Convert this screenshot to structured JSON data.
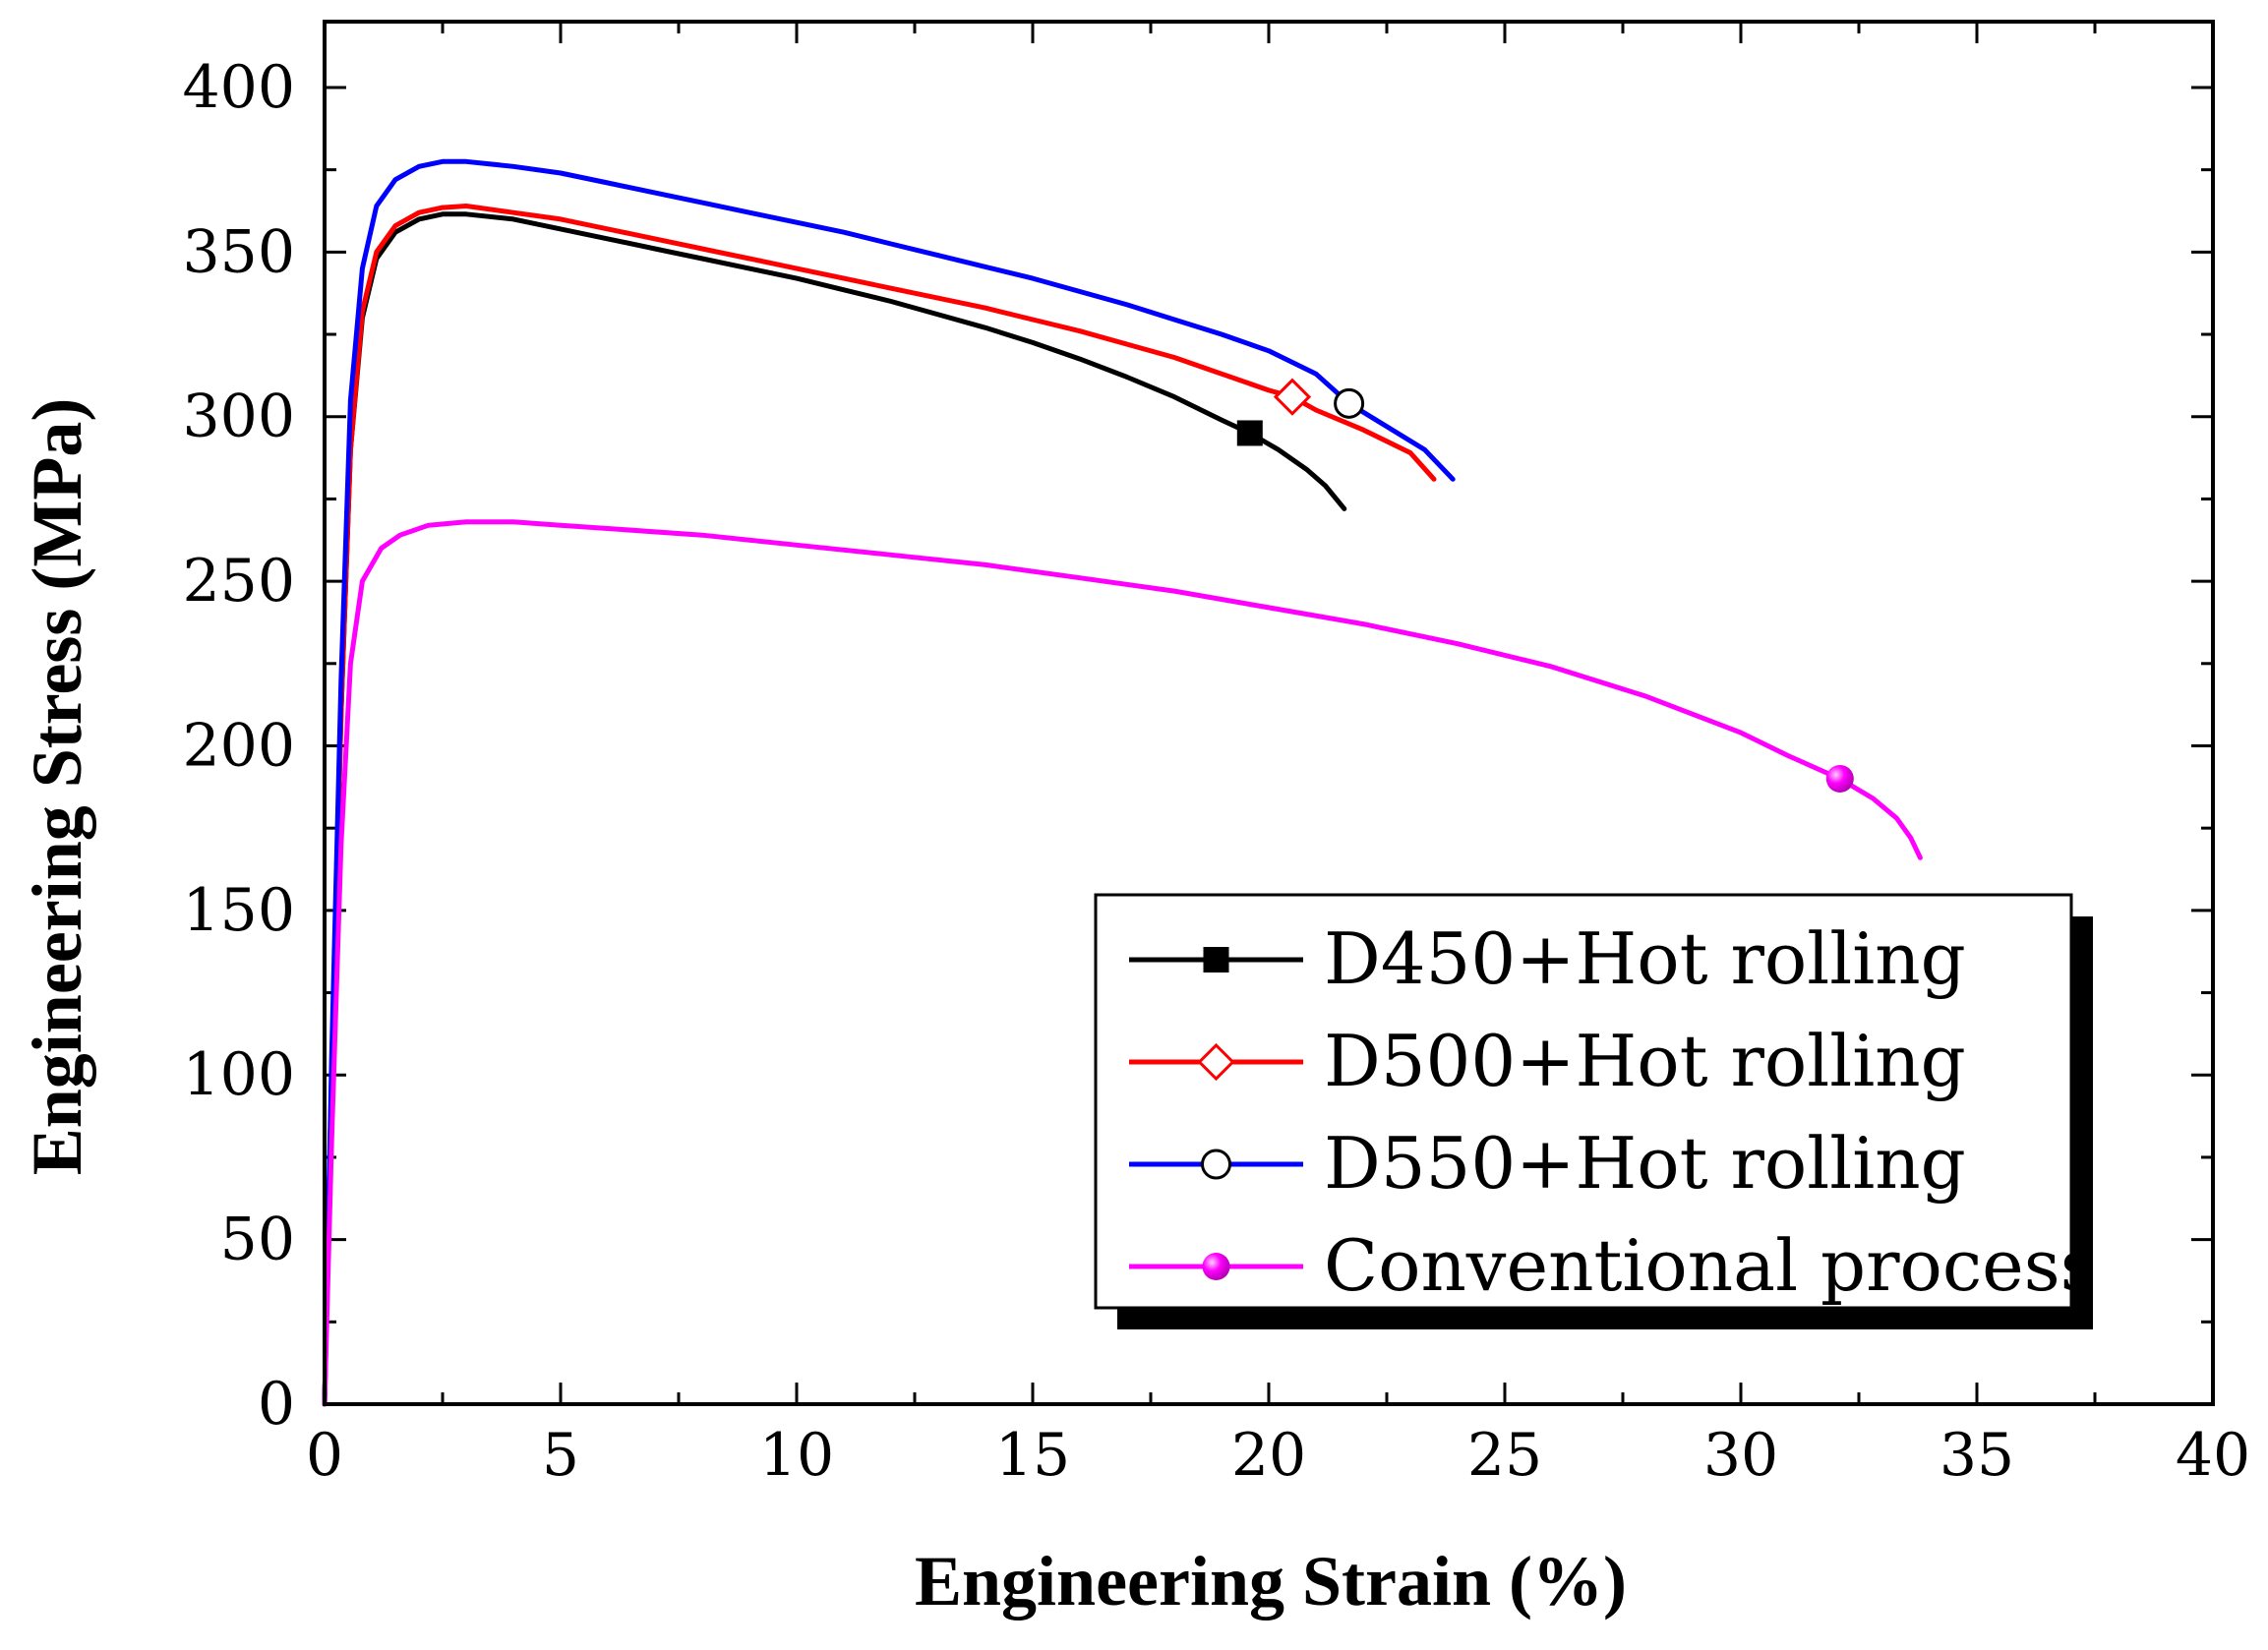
{
  "chart_data": {
    "type": "line",
    "xlabel": "Engineering Strain (%)",
    "ylabel": "Engineering Stress (MPa)",
    "xlim": [
      0,
      40
    ],
    "ylim": [
      0,
      420
    ],
    "x_ticks": [
      0,
      5,
      10,
      15,
      20,
      25,
      30,
      35,
      40
    ],
    "y_ticks": [
      0,
      50,
      100,
      150,
      200,
      250,
      300,
      350,
      400
    ],
    "legend_position": "bottom-right",
    "series": [
      {
        "name": "D450+Hot rolling",
        "color": "#000000",
        "marker": "filled-square",
        "marker_at": [
          19.6,
          295
        ],
        "x": [
          0,
          0.15,
          0.35,
          0.55,
          0.8,
          1.1,
          1.5,
          2.0,
          2.5,
          3.0,
          4,
          5,
          6,
          7,
          8,
          9,
          10,
          11,
          12,
          13,
          14,
          15,
          16,
          17,
          18,
          19,
          19.6,
          20.2,
          20.8,
          21.2,
          21.6
        ],
        "y": [
          0,
          100,
          210,
          290,
          330,
          348,
          356,
          360,
          361.5,
          361.5,
          360,
          357,
          354,
          351,
          348,
          345,
          342,
          338.5,
          335,
          331,
          327,
          322.5,
          317.5,
          312,
          306,
          299,
          295,
          290,
          284,
          279,
          272
        ]
      },
      {
        "name": "D500+Hot rolling",
        "color": "#ff0000",
        "marker": "open-diamond",
        "marker_at": [
          20.5,
          306
        ],
        "x": [
          0,
          0.15,
          0.35,
          0.55,
          0.8,
          1.1,
          1.5,
          2.0,
          2.5,
          3.0,
          4,
          5,
          6,
          7,
          8,
          9,
          10,
          11,
          12,
          13,
          14,
          15,
          16,
          17,
          18,
          19,
          20,
          20.5,
          21,
          22,
          23,
          23.5
        ],
        "y": [
          0,
          100,
          210,
          290,
          332,
          350,
          358,
          362,
          363.5,
          364,
          362,
          360,
          357,
          354,
          351,
          348,
          345,
          342,
          339,
          336,
          333,
          329.5,
          326,
          322,
          318,
          313,
          308,
          306,
          302,
          296,
          289,
          281
        ]
      },
      {
        "name": "D550+Hot rolling",
        "color": "#0000ff",
        "marker": "open-circle",
        "marker_at": [
          21.7,
          304
        ],
        "x": [
          0,
          0.15,
          0.35,
          0.55,
          0.8,
          1.1,
          1.5,
          2.0,
          2.5,
          3.0,
          4,
          5,
          6,
          7,
          8,
          9,
          10,
          11,
          12,
          13,
          14,
          15,
          16,
          17,
          18,
          19,
          20,
          21,
          21.7,
          22.5,
          23.3,
          23.9
        ],
        "y": [
          0,
          105,
          220,
          305,
          345,
          364,
          372,
          376,
          377.5,
          377.5,
          376,
          374,
          371,
          368,
          365,
          362,
          359,
          356,
          352.5,
          349,
          345.5,
          342,
          338,
          334,
          329.5,
          325,
          320,
          313,
          304,
          297,
          290,
          281
        ]
      },
      {
        "name": "Conventional process",
        "color": "#ff00ff",
        "marker": "filled-sphere",
        "marker_at": [
          32.1,
          190
        ],
        "x": [
          0,
          0.15,
          0.35,
          0.55,
          0.8,
          1.2,
          1.6,
          2.2,
          3.0,
          4,
          5,
          6,
          8,
          10,
          12,
          14,
          16,
          18,
          20,
          22,
          24,
          26,
          28,
          30,
          31,
          32.1,
          32.8,
          33.3,
          33.6,
          33.8
        ],
        "y": [
          0,
          80,
          170,
          225,
          250,
          260,
          264,
          267,
          268,
          268,
          267,
          266,
          264,
          261,
          258,
          255,
          251,
          247,
          242,
          237,
          231,
          224,
          215,
          204,
          197,
          190,
          184,
          178,
          172,
          166
        ]
      }
    ]
  }
}
